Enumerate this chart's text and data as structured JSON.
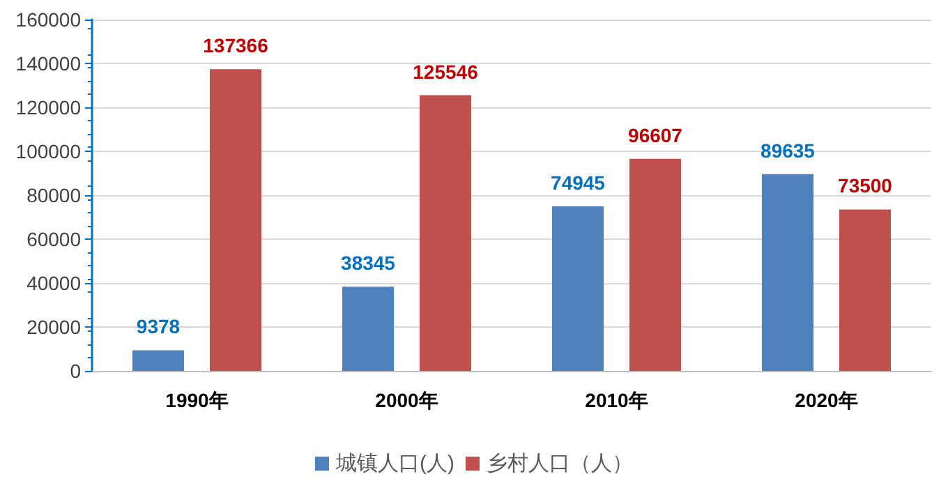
{
  "chart_data": {
    "type": "bar",
    "categories": [
      "1990年",
      "2000年",
      "2010年",
      "2020年"
    ],
    "series": [
      {
        "name": "城镇人口(人)",
        "color": "#4f81bd",
        "values": [
          9378,
          38345,
          74945,
          89635
        ]
      },
      {
        "name": "乡村人口（人）",
        "color": "#c0504d",
        "values": [
          137366,
          125546,
          96607,
          73500
        ]
      }
    ],
    "ylim": [
      0,
      160000
    ],
    "yticks": [
      0,
      20000,
      40000,
      60000,
      80000,
      100000,
      120000,
      140000,
      160000
    ],
    "grid": "y",
    "legend": "bottom",
    "data_labels": true
  }
}
